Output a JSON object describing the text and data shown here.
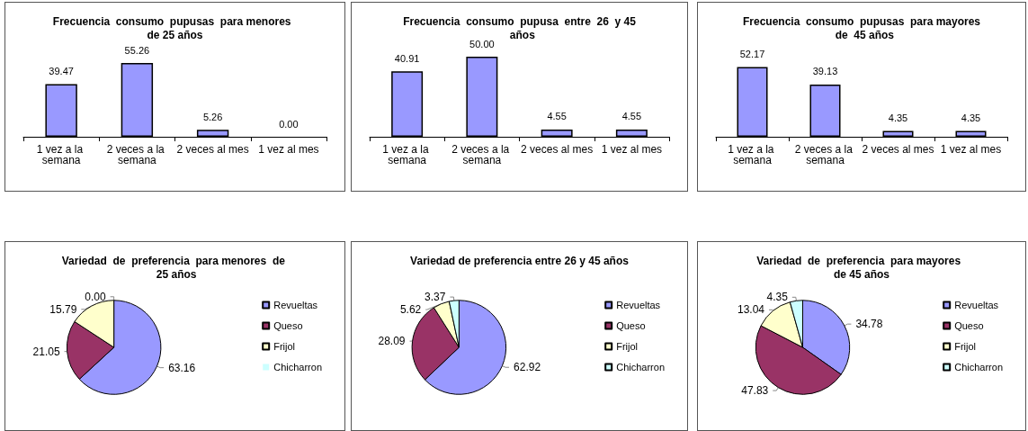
{
  "chart_data": [
    {
      "type": "bar",
      "title": "Frecuencia  consumo  pupusas  para menores  de 25 años",
      "categories": [
        "1 vez a la semana",
        "2 veces a la semana",
        "2 veces al mes",
        "1 vez al mes"
      ],
      "values": [
        39.47,
        55.26,
        5.26,
        0
      ],
      "value_labels": [
        "39.47",
        "55.26",
        "5.26",
        "0.00"
      ],
      "color": "#9999ff",
      "grid": false,
      "legend": false
    },
    {
      "type": "bar",
      "title": "Frecuencia  consumo  pupusa  entre  26  y 45  años",
      "categories": [
        "1 vez a la semana",
        "2 veces a la semana",
        "2 veces al mes",
        "1 vez al mes"
      ],
      "values": [
        40.91,
        50,
        4.55,
        4.55
      ],
      "value_labels": [
        "40.91",
        "50.00",
        "4.55",
        "4.55"
      ],
      "color": "#9999ff",
      "grid": false,
      "legend": false
    },
    {
      "type": "bar",
      "title": "Frecuencia  consumo  pupusas  para mayores  de  45 años",
      "categories": [
        "1 vez a la semana",
        "2 veces a la semana",
        "2 veces al mes",
        "1 vez al mes"
      ],
      "values": [
        52.17,
        39.13,
        4.35,
        4.35
      ],
      "value_labels": [
        "52.17",
        "39.13",
        "4.35",
        "4.35"
      ],
      "color": "#9999ff",
      "grid": false,
      "legend": false
    },
    {
      "type": "pie",
      "title": "Variedad  de  preferencia  para menores  de  25 años",
      "categories": [
        "Revueltas",
        "Queso",
        "Frijol",
        "Chicharron"
      ],
      "values": [
        63.16,
        21.05,
        15.79,
        0
      ],
      "value_labels": [
        "63.16",
        "21.05",
        "15.79",
        "0.00"
      ],
      "colors": [
        "#9999ff",
        "#993366",
        "#ffffcc",
        "#ccffff"
      ],
      "legend": "right"
    },
    {
      "type": "pie",
      "title": "Variedad de preferencia entre 26 y 45 años",
      "categories": [
        "Revueltas",
        "Queso",
        "Frijol",
        "Chicharron"
      ],
      "values": [
        62.92,
        28.09,
        5.62,
        3.37
      ],
      "value_labels": [
        "62.92",
        "28.09",
        "5.62",
        "3.37"
      ],
      "colors": [
        "#9999ff",
        "#993366",
        "#ffffcc",
        "#ccffff"
      ],
      "legend": "right"
    },
    {
      "type": "pie",
      "title": "Variedad  de  preferencia  para mayores  de 45 años",
      "categories": [
        "Revueltas",
        "Queso",
        "Frijol",
        "Chicharron"
      ],
      "values": [
        34.78,
        47.83,
        13.04,
        4.35
      ],
      "value_labels": [
        "34.78",
        "47.83",
        "13.04",
        "4.35"
      ],
      "colors": [
        "#9999ff",
        "#993366",
        "#ffffcc",
        "#ccffff"
      ],
      "legend": "right"
    }
  ]
}
